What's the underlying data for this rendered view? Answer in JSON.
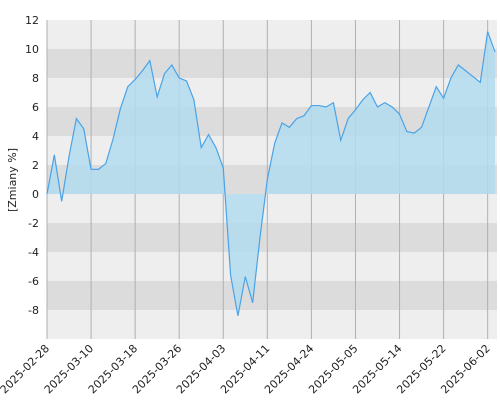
{
  "chart_data": {
    "type": "area",
    "y_label": "[Zmiany %]",
    "categories": [
      "2025-02-28",
      null,
      null,
      null,
      null,
      null,
      "2025-03-10",
      null,
      null,
      null,
      null,
      null,
      "2025-03-18",
      null,
      null,
      null,
      null,
      null,
      "2025-03-26",
      null,
      null,
      null,
      null,
      null,
      "2025-04-03",
      null,
      null,
      null,
      null,
      null,
      "2025-04-11",
      null,
      null,
      null,
      null,
      null,
      "2025-04-24",
      null,
      null,
      null,
      null,
      null,
      "2025-05-05",
      null,
      null,
      null,
      null,
      null,
      "2025-05-14",
      null,
      null,
      null,
      null,
      null,
      "2025-05-22",
      null,
      null,
      null,
      null,
      null,
      "2025-06-02",
      null
    ],
    "values": [
      0,
      2.7,
      -0.5,
      2.6,
      5.2,
      4.5,
      1.7,
      1.7,
      2.1,
      3.8,
      5.9,
      7.4,
      7.9,
      8.5,
      9.2,
      6.7,
      8.3,
      8.9,
      8.0,
      7.8,
      6.5,
      3.2,
      4.1,
      3.2,
      1.8,
      -5.6,
      -8.4,
      -5.7,
      -7.5,
      -3.0,
      1.0,
      3.5,
      4.9,
      4.6,
      5.2,
      5.4,
      6.1,
      6.1,
      6.0,
      6.3,
      3.7,
      5.2,
      5.8,
      6.5,
      7.0,
      6.0,
      6.3,
      6.0,
      5.5,
      4.3,
      4.2,
      4.6,
      6.0,
      7.4,
      6.6,
      8.0,
      8.9,
      8.5,
      8.1,
      7.7,
      11.2,
      9.8
    ],
    "color": "#4aa3e6",
    "fill": "#b3dcef",
    "ylim": [
      -10,
      12
    ],
    "yticks": [
      -8,
      -6,
      -4,
      -2,
      0,
      2,
      4,
      6,
      8,
      10,
      12
    ],
    "grid": true
  }
}
